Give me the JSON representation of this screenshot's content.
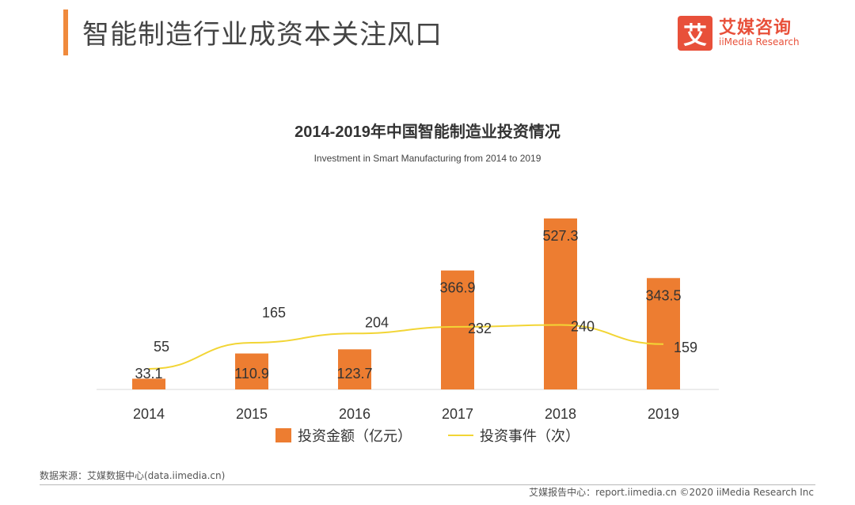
{
  "header": {
    "title": "智能制造行业成资本关注风口",
    "logo_mark": "艾",
    "logo_cn": "艾媒咨询",
    "logo_en": "iiMedia Research"
  },
  "footer": {
    "source": "数据来源：艾媒数据中心(data.iimedia.cn)",
    "copyright": "艾媒报告中心：report.iimedia.cn ©2020 iiMedia Research Inc"
  },
  "colors": {
    "bar": "#ed7d31",
    "line": "#f2d535",
    "accent": "#e8503a"
  },
  "chart_data": {
    "type": "bar",
    "title": "2014-2019年中国智能制造业投资情况",
    "subtitle": "Investment in Smart Manufacturing from 2014 to 2019",
    "categories": [
      "2014",
      "2015",
      "2016",
      "2017",
      "2018",
      "2019"
    ],
    "series": [
      {
        "name": "投资金额（亿元）",
        "type": "bar",
        "values": [
          33.1,
          110.9,
          123.7,
          366.9,
          527.3,
          343.5
        ]
      },
      {
        "name": "投资事件（次）",
        "type": "line",
        "values": [
          55,
          165,
          204,
          232,
          240,
          159
        ]
      }
    ],
    "legend": "bottom",
    "grid": false
  }
}
